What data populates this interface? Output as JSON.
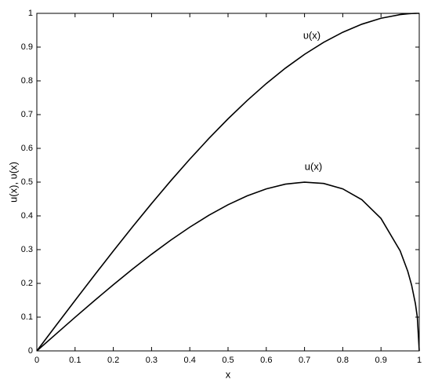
{
  "chart_data": {
    "type": "line",
    "x_label": "x",
    "y_label": "u(x), υ(x)",
    "x": [
      0,
      0.05,
      0.1,
      0.15,
      0.2,
      0.25,
      0.3,
      0.35,
      0.4,
      0.45,
      0.5,
      0.55,
      0.6,
      0.65,
      0.7,
      0.75,
      0.8,
      0.85,
      0.9,
      0.95,
      0.97,
      0.98,
      0.99,
      0.995,
      1
    ],
    "series": [
      {
        "name": "υ(x)",
        "color": "#000000",
        "values": [
          0,
          0.0749,
          0.1495,
          0.2233,
          0.296,
          0.3672,
          0.4365,
          0.5036,
          0.568,
          0.6294,
          0.6875,
          0.7418,
          0.792,
          0.8377,
          0.8785,
          0.9141,
          0.944,
          0.9679,
          0.9855,
          0.9963,
          0.9987,
          0.9994,
          0.9999,
          1.0,
          1
        ]
      },
      {
        "name": "u(x)",
        "color": "#000000",
        "values": [
          0,
          0.0499,
          0.0995,
          0.1483,
          0.196,
          0.2421,
          0.2862,
          0.3279,
          0.3666,
          0.4019,
          0.433,
          0.4593,
          0.48,
          0.494,
          0.4999,
          0.4961,
          0.48,
          0.4478,
          0.3923,
          0.2966,
          0.2358,
          0.195,
          0.1397,
          0.0994,
          0
        ]
      }
    ],
    "xlim": [
      0,
      1
    ],
    "ylim": [
      0,
      1
    ],
    "xticks": [
      0,
      0.1,
      0.2,
      0.3,
      0.4,
      0.5,
      0.6,
      0.7,
      0.8,
      0.9,
      1
    ],
    "yticks": [
      0,
      0.1,
      0.2,
      0.3,
      0.4,
      0.5,
      0.6,
      0.7,
      0.8,
      0.9,
      1
    ],
    "grid": false
  }
}
